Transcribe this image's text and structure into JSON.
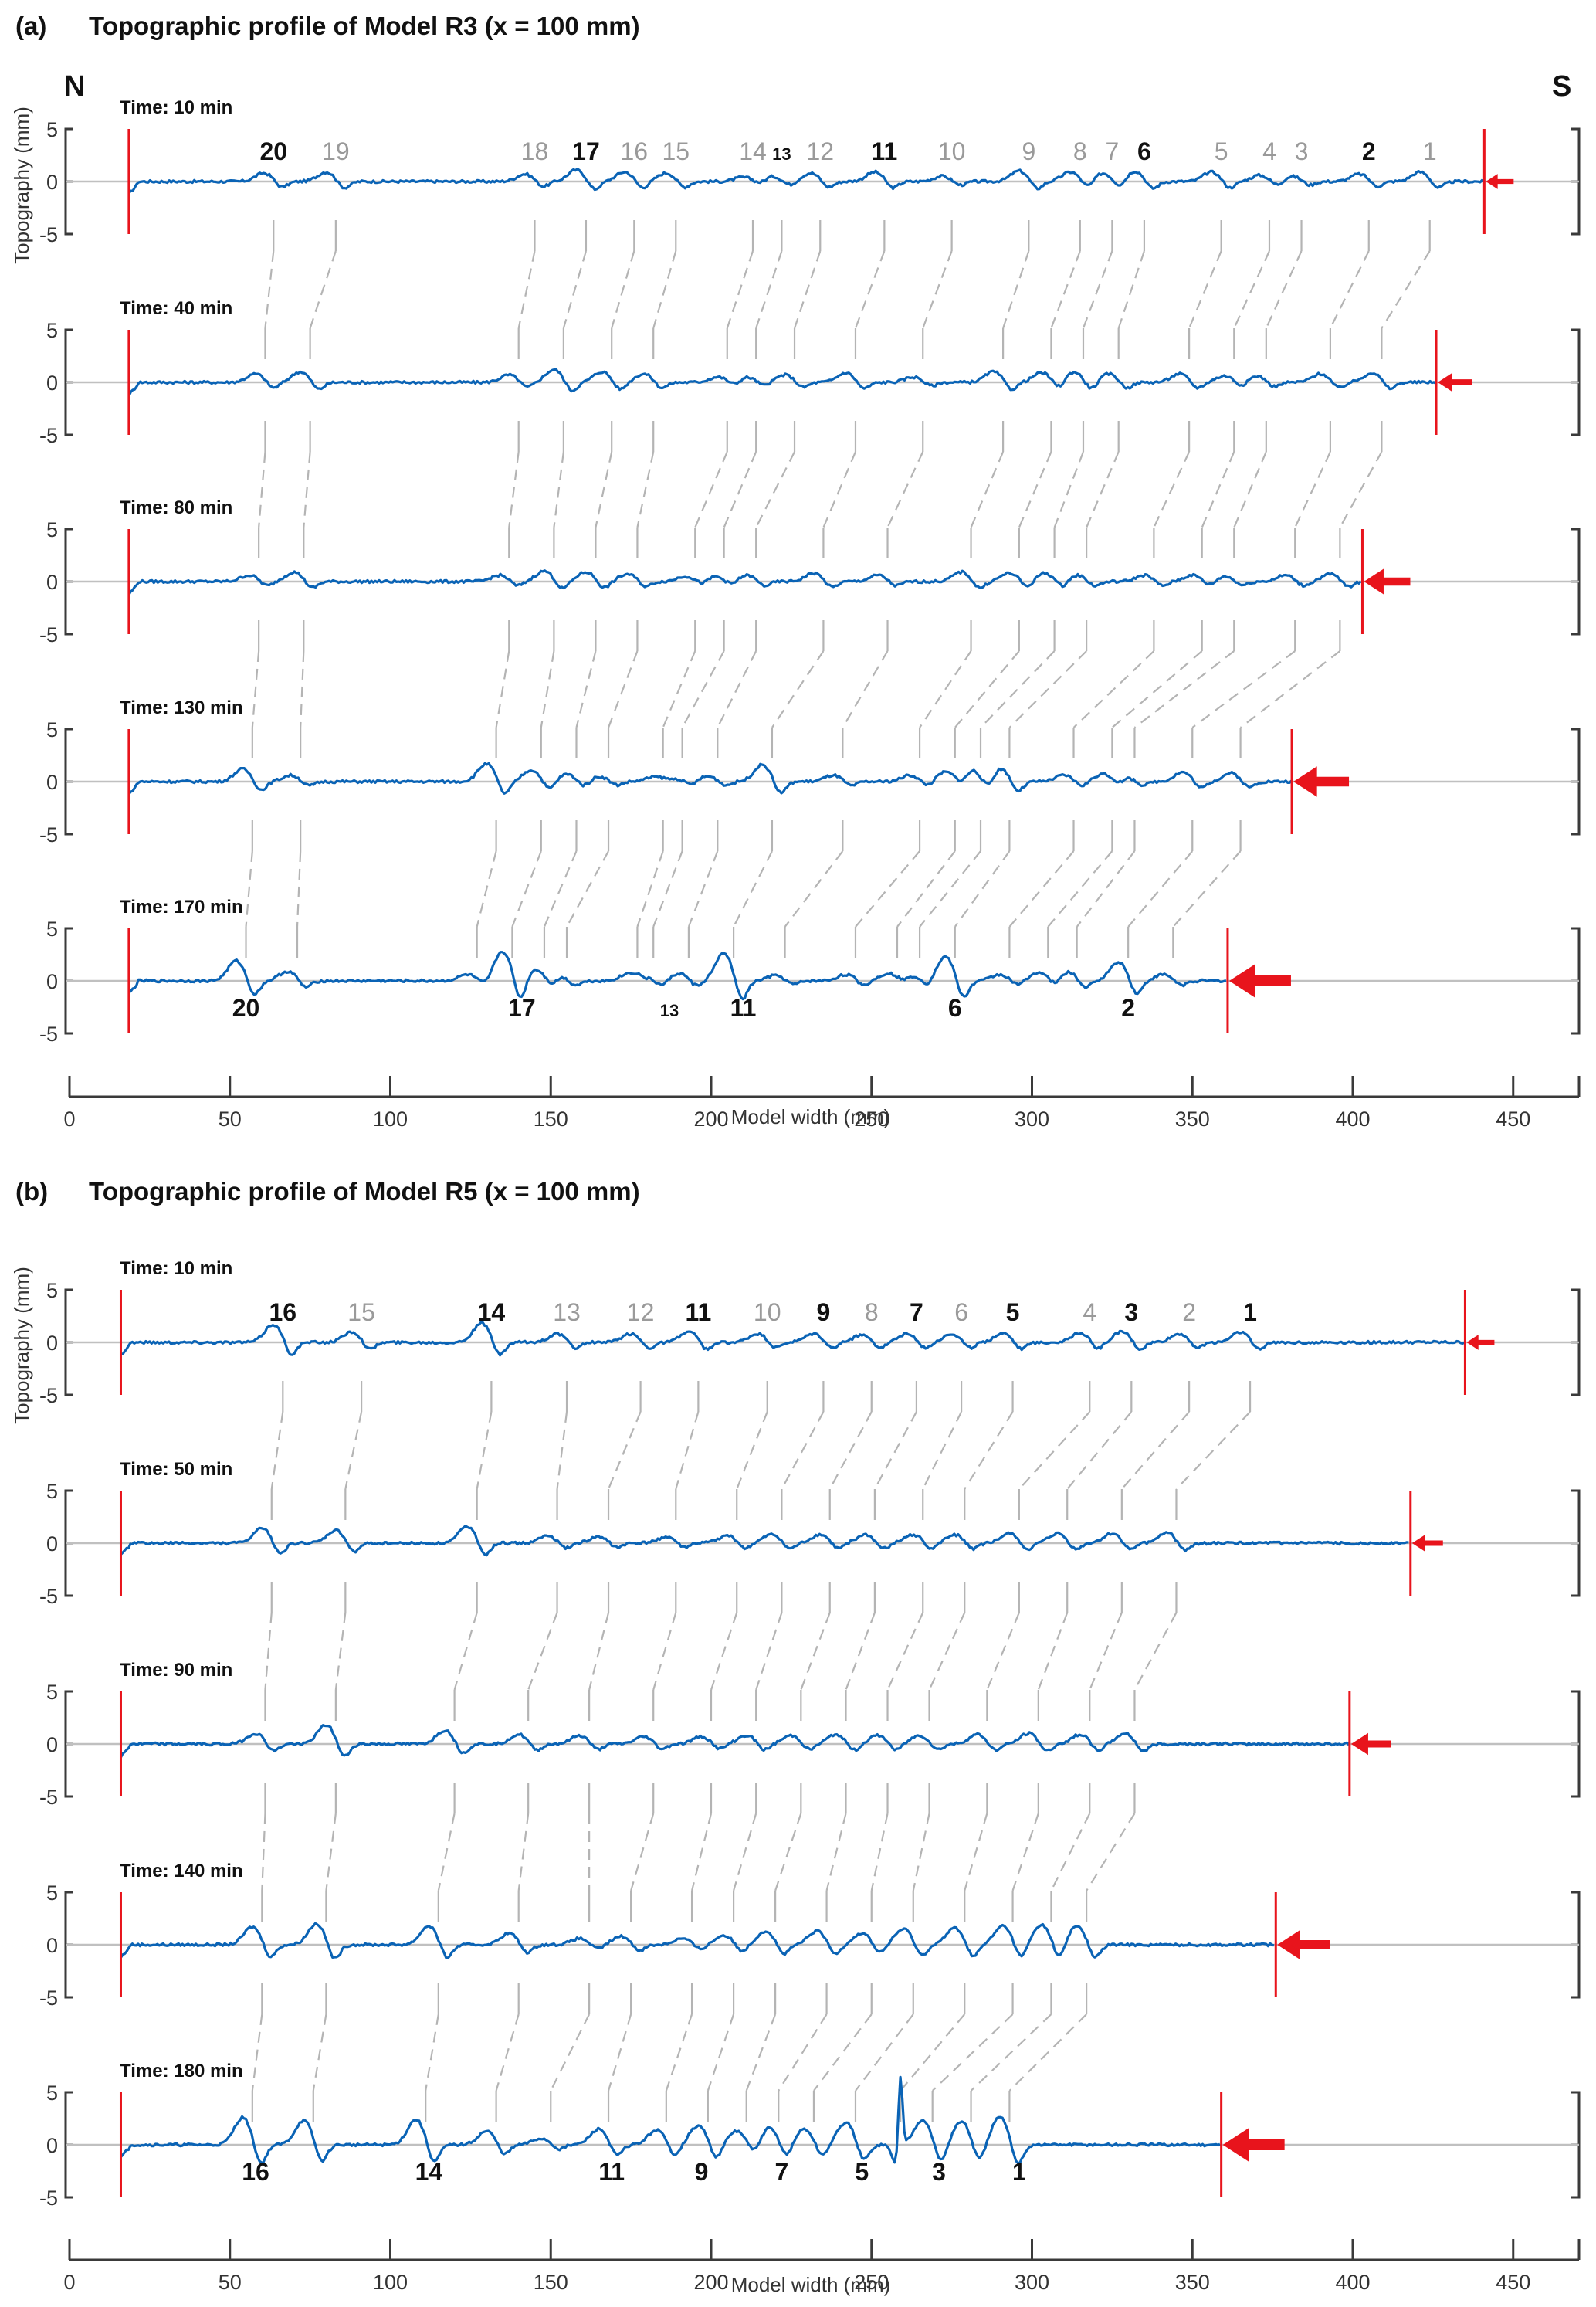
{
  "chart_data": [
    {
      "type": "line",
      "panel_label": "(a)",
      "title": "Topographic profile of Model R3 (x = 100 mm)",
      "xlabel": "Model width (mm)",
      "ylabel": "Topography (mm)",
      "xlim": [
        0,
        470
      ],
      "x_ticks": [
        0,
        50,
        100,
        150,
        200,
        250,
        300,
        350,
        400,
        450
      ],
      "ylim": [
        -5,
        5
      ],
      "y_ticks": [
        -5,
        0,
        5
      ],
      "compass_left": "N",
      "compass_right": "S",
      "backstop_x_mm": 18.5,
      "rows": [
        {
          "time_label": "Time: 10 min",
          "wall_x_mm": 441,
          "arrow_scale": 0.45,
          "features": [
            {
              "id": "20",
              "x": 63.6,
              "amp": 0.8,
              "bold": true
            },
            {
              "id": "19",
              "x": 83,
              "amp": 0.9,
              "bold": false
            },
            {
              "id": "18",
              "x": 145,
              "amp": 0.7,
              "bold": false
            },
            {
              "id": "17",
              "x": 161,
              "amp": 1.1,
              "bold": true
            },
            {
              "id": "16",
              "x": 176,
              "amp": 0.9,
              "bold": false
            },
            {
              "id": "15",
              "x": 189,
              "amp": 0.8,
              "bold": false
            },
            {
              "id": "14",
              "x": 213,
              "amp": 0.4,
              "bold": false
            },
            {
              "id": "13",
              "x": 222,
              "amp": 0.5,
              "bold": true,
              "small": true
            },
            {
              "id": "12",
              "x": 234,
              "amp": 0.8,
              "bold": false
            },
            {
              "id": "11",
              "x": 254,
              "amp": 0.9,
              "bold": true
            },
            {
              "id": "10",
              "x": 275,
              "amp": 0.5,
              "bold": false
            },
            {
              "id": "9",
              "x": 299,
              "amp": 1.0,
              "bold": false
            },
            {
              "id": "8",
              "x": 315,
              "amp": 0.9,
              "bold": false
            },
            {
              "id": "7",
              "x": 325,
              "amp": 0.8,
              "bold": false
            },
            {
              "id": "6",
              "x": 335,
              "amp": 1.0,
              "bold": true
            },
            {
              "id": "5",
              "x": 359,
              "amp": 0.9,
              "bold": false
            },
            {
              "id": "4",
              "x": 374,
              "amp": 0.6,
              "bold": false
            },
            {
              "id": "3",
              "x": 384,
              "amp": 0.5,
              "bold": false
            },
            {
              "id": "2",
              "x": 405,
              "amp": 0.7,
              "bold": true
            },
            {
              "id": "1",
              "x": 424,
              "amp": 0.9,
              "bold": false
            }
          ],
          "show_labels": "above"
        },
        {
          "time_label": "Time: 40 min",
          "wall_x_mm": 426,
          "arrow_scale": 0.55,
          "features_x": [
            61,
            75,
            140,
            154,
            169,
            182,
            205,
            214,
            226,
            245,
            266,
            291,
            306,
            316,
            327,
            349,
            363,
            373,
            393,
            409
          ],
          "amps": [
            0.8,
            1.0,
            0.7,
            1.2,
            1.0,
            0.8,
            0.5,
            0.5,
            0.7,
            0.9,
            0.5,
            1.0,
            0.9,
            1.0,
            0.8,
            0.8,
            0.6,
            0.6,
            0.8,
            0.9
          ]
        },
        {
          "time_label": "Time: 80 min",
          "wall_x_mm": 403,
          "arrow_scale": 0.75,
          "features_x": [
            59,
            73,
            137,
            151,
            164,
            177,
            195,
            204,
            214,
            235,
            255,
            281,
            296,
            307,
            317,
            338,
            353,
            363,
            382,
            396
          ],
          "amps": [
            0.6,
            0.9,
            0.6,
            1.0,
            0.9,
            0.7,
            0.5,
            0.5,
            0.6,
            0.8,
            0.6,
            0.9,
            0.8,
            0.8,
            0.6,
            0.6,
            0.6,
            0.5,
            0.6,
            0.7
          ]
        },
        {
          "time_label": "Time: 130 min",
          "wall_x_mm": 381,
          "arrow_scale": 0.9,
          "features_x": [
            57,
            72,
            133,
            147,
            158,
            168,
            185,
            191,
            202,
            219,
            241,
            265,
            276,
            284,
            293,
            313,
            325,
            332,
            350,
            365
          ],
          "amps": [
            1.2,
            0.6,
            1.7,
            1.1,
            0.7,
            0.5,
            0.4,
            0.5,
            0.5,
            1.6,
            0.6,
            0.6,
            0.9,
            1.2,
            1.3,
            0.6,
            0.7,
            0.5,
            0.9,
            0.8
          ]
        },
        {
          "time_label": "Time: 170 min",
          "wall_x_mm": 361,
          "arrow_scale": 1.0,
          "features_x": [
            55,
            71,
            127,
            138,
            148,
            155,
            177,
            182,
            193,
            207,
            223,
            245,
            258,
            265,
            276,
            293,
            305,
            314,
            330,
            344
          ],
          "amps": [
            1.9,
            0.9,
            0.6,
            2.8,
            1.1,
            0.6,
            0.6,
            0.7,
            0.7,
            2.6,
            0.5,
            0.6,
            0.7,
            0.7,
            2.3,
            0.6,
            0.8,
            0.9,
            1.8,
            0.6
          ],
          "features": [
            {
              "id": "20",
              "x": 55,
              "bold": true
            },
            {
              "id": "17",
              "x": 141,
              "bold": true
            },
            {
              "id": "13",
              "x": 187,
              "bold": true,
              "small": true
            },
            {
              "id": "11",
              "x": 210,
              "bold": true
            },
            {
              "id": "6",
              "x": 276,
              "bold": true
            },
            {
              "id": "2",
              "x": 330,
              "bold": true
            }
          ],
          "show_labels": "below"
        }
      ]
    },
    {
      "type": "line",
      "panel_label": "(b)",
      "title": "Topographic profile of Model R5 (x = 100 mm)",
      "xlabel": "Model width (mm)",
      "ylabel": "Topography (mm)",
      "xlim": [
        0,
        470
      ],
      "x_ticks": [
        0,
        50,
        100,
        150,
        200,
        250,
        300,
        350,
        400,
        450
      ],
      "ylim": [
        -5,
        5
      ],
      "y_ticks": [
        -5,
        0,
        5
      ],
      "backstop_x_mm": 16,
      "rows": [
        {
          "time_label": "Time: 10 min",
          "wall_x_mm": 435,
          "arrow_scale": 0.45,
          "features": [
            {
              "id": "16",
              "x": 66.5,
              "amp": 1.7,
              "bold": true
            },
            {
              "id": "15",
              "x": 91,
              "amp": 1.0,
              "bold": false
            },
            {
              "id": "14",
              "x": 131.5,
              "amp": 1.8,
              "bold": true
            },
            {
              "id": "13",
              "x": 155,
              "amp": 0.8,
              "bold": false
            },
            {
              "id": "12",
              "x": 178,
              "amp": 0.8,
              "bold": false
            },
            {
              "id": "11",
              "x": 196,
              "amp": 1.0,
              "bold": true
            },
            {
              "id": "10",
              "x": 217.5,
              "amp": 0.8,
              "bold": false
            },
            {
              "id": "9",
              "x": 235,
              "amp": 0.8,
              "bold": true
            },
            {
              "id": "8",
              "x": 250,
              "amp": 0.7,
              "bold": false
            },
            {
              "id": "7",
              "x": 264,
              "amp": 0.8,
              "bold": true
            },
            {
              "id": "6",
              "x": 278,
              "amp": 0.8,
              "bold": false
            },
            {
              "id": "5",
              "x": 294,
              "amp": 0.9,
              "bold": true
            },
            {
              "id": "4",
              "x": 318,
              "amp": 0.9,
              "bold": false
            },
            {
              "id": "3",
              "x": 331,
              "amp": 1.0,
              "bold": true
            },
            {
              "id": "2",
              "x": 349,
              "amp": 0.8,
              "bold": false
            },
            {
              "id": "1",
              "x": 368,
              "amp": 1.0,
              "bold": true
            }
          ],
          "show_labels": "above"
        },
        {
          "time_label": "Time: 50 min",
          "wall_x_mm": 418,
          "arrow_scale": 0.5,
          "features_x": [
            63,
            86,
            127,
            152,
            168,
            189,
            208,
            222,
            237,
            251,
            266,
            279,
            296,
            311,
            328,
            345
          ],
          "amps": [
            1.4,
            1.2,
            1.6,
            0.7,
            0.6,
            0.6,
            0.7,
            0.8,
            0.8,
            0.8,
            0.8,
            0.8,
            0.9,
            0.9,
            0.9,
            1.0
          ]
        },
        {
          "time_label": "Time: 90 min",
          "wall_x_mm": 399,
          "arrow_scale": 0.65,
          "features_x": [
            61,
            83,
            120,
            143,
            162,
            182,
            200,
            214,
            228,
            242,
            255,
            268,
            286,
            302,
            318,
            332
          ],
          "amps": [
            1.0,
            1.8,
            1.3,
            0.9,
            0.8,
            0.7,
            0.7,
            0.8,
            0.8,
            0.9,
            0.8,
            0.8,
            0.9,
            1.0,
            0.9,
            1.0
          ]
        },
        {
          "time_label": "Time: 140 min",
          "wall_x_mm": 376,
          "arrow_scale": 0.85,
          "features_x": [
            60,
            80,
            115,
            140,
            162,
            175,
            194,
            207,
            220,
            236,
            250,
            263,
            279,
            294,
            306,
            317
          ],
          "amps": [
            1.7,
            2.0,
            1.8,
            1.1,
            0.6,
            0.8,
            0.6,
            0.9,
            1.3,
            1.3,
            1.1,
            1.5,
            1.6,
            1.8,
            1.9,
            1.8
          ]
        },
        {
          "time_label": "Time: 180 min",
          "wall_x_mm": 359,
          "arrow_scale": 1.0,
          "features_x": [
            57,
            76,
            111,
            133,
            150,
            168,
            186,
            199,
            211,
            221,
            232,
            245,
            259,
            269,
            281,
            293
          ],
          "amps": [
            2.6,
            2.3,
            2.4,
            1.3,
            0.6,
            1.5,
            1.4,
            1.8,
            1.3,
            1.6,
            1.5,
            2.1,
            7.2,
            2.4,
            2.2,
            2.6
          ],
          "features": [
            {
              "id": "16",
              "x": 58,
              "bold": true
            },
            {
              "id": "14",
              "x": 112,
              "bold": true
            },
            {
              "id": "11",
              "x": 169,
              "bold": true
            },
            {
              "id": "9",
              "x": 197,
              "bold": true
            },
            {
              "id": "7",
              "x": 222,
              "bold": true
            },
            {
              "id": "5",
              "x": 247,
              "bold": true
            },
            {
              "id": "3",
              "x": 271,
              "bold": true
            },
            {
              "id": "1",
              "x": 296,
              "bold": true
            }
          ],
          "show_labels": "below"
        }
      ]
    }
  ],
  "colors": {
    "profile": "#0a63b5",
    "wall": "#e8141c",
    "arrow": "#e8141c",
    "tracker": "#b4b4b4",
    "zero_line": "#c0c0c0",
    "axis": "#3a3a3a"
  }
}
